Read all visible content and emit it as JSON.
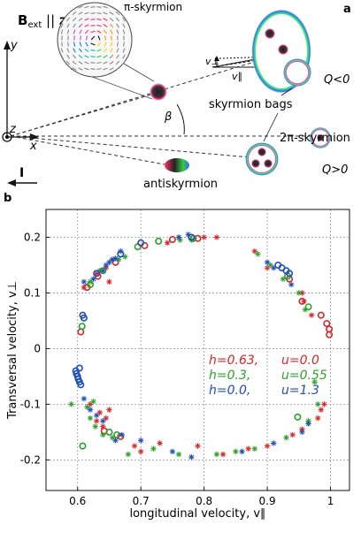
{
  "panel_a": {
    "letter": "a",
    "field": {
      "base": "B",
      "sub": "ext",
      "rest": " || ",
      "dir": "z"
    },
    "axes": {
      "y": "y",
      "x": "x",
      "z": "z"
    },
    "current": "I",
    "labels": {
      "pi_skyrmion": "π-skyrmion",
      "skyrmion_bags": "skyrmion bags",
      "two_pi_skyrmion": "2π-skyrmion",
      "antiskyrmion": "antiskyrmion",
      "q_neg": "Q<0",
      "q_pos": "Q>0",
      "beta": "β",
      "v_perp": "v⊥",
      "v_par": "v∥"
    }
  },
  "panel_b": {
    "letter": "b"
  },
  "chart_data": {
    "type": "scatter",
    "xlabel": "longitudinal velocity, v∥",
    "ylabel": "Transversal velocity, v⊥",
    "xlim": [
      0.55,
      1.03
    ],
    "ylim": [
      -0.255,
      0.25
    ],
    "xticks": [
      0.6,
      0.7,
      0.8,
      0.9,
      1
    ],
    "xtick_labels": [
      "0.6",
      "0.7",
      "0.8",
      "0.9",
      "1"
    ],
    "yticks": [
      -0.2,
      -0.1,
      0,
      0.1,
      0.2
    ],
    "ytick_labels": [
      "-0.2",
      "-0.1",
      "0",
      "0.1",
      "0.2"
    ],
    "grid": true,
    "legend": {
      "placement": "right-center",
      "rows": [
        {
          "h": "h=0.63,",
          "u": "u=0.0",
          "color": "#d62728"
        },
        {
          "h": "h=0.3,",
          "u": "u=0.55",
          "color": "#2ca02c"
        },
        {
          "h": "h=0.0,",
          "u": "u=1.3",
          "color": "#1f4fb4"
        }
      ]
    },
    "series": [
      {
        "color": "#d62728",
        "circles": [
          [
            0.615,
            0.11
          ],
          [
            0.632,
            0.13
          ],
          [
            0.66,
            0.155
          ],
          [
            0.706,
            0.185
          ],
          [
            0.75,
            0.196
          ],
          [
            0.79,
            0.198
          ],
          [
            0.935,
            0.125
          ],
          [
            0.955,
            0.085
          ],
          [
            0.985,
            0.06
          ],
          [
            0.994,
            0.045
          ],
          [
            0.998,
            0.035
          ],
          [
            0.998,
            0.025
          ],
          [
            0.605,
            0.03
          ],
          [
            0.642,
            -0.148
          ],
          [
            0.668,
            -0.158
          ]
        ],
        "stars": [
          [
            0.61,
            0.11
          ],
          [
            0.63,
            0.135
          ],
          [
            0.645,
            0.145
          ],
          [
            0.655,
            0.16
          ],
          [
            0.65,
            0.12
          ],
          [
            0.742,
            0.19
          ],
          [
            0.76,
            0.2
          ],
          [
            0.8,
            0.2
          ],
          [
            0.82,
            0.2
          ],
          [
            0.88,
            0.175
          ],
          [
            0.9,
            0.145
          ],
          [
            0.955,
            0.1
          ],
          [
            0.958,
            0.085
          ],
          [
            0.97,
            0.06
          ],
          [
            0.99,
            -0.1
          ],
          [
            0.985,
            -0.11
          ],
          [
            0.98,
            -0.125
          ],
          [
            0.955,
            -0.145
          ],
          [
            0.94,
            -0.155
          ],
          [
            0.9,
            -0.175
          ],
          [
            0.87,
            -0.18
          ],
          [
            0.83,
            -0.19
          ],
          [
            0.79,
            -0.175
          ],
          [
            0.73,
            -0.17
          ],
          [
            0.7,
            -0.185
          ],
          [
            0.69,
            -0.175
          ],
          [
            0.65,
            -0.11
          ],
          [
            0.645,
            -0.125
          ],
          [
            0.64,
            -0.14
          ],
          [
            0.635,
            -0.115
          ],
          [
            0.63,
            -0.13
          ],
          [
            0.62,
            -0.1
          ]
        ]
      },
      {
        "color": "#2ca02c",
        "circles": [
          [
            0.62,
            0.115
          ],
          [
            0.64,
            0.14
          ],
          [
            0.695,
            0.183
          ],
          [
            0.728,
            0.193
          ],
          [
            0.783,
            0.198
          ],
          [
            0.932,
            0.13
          ],
          [
            0.965,
            0.075
          ],
          [
            0.607,
            0.04
          ],
          [
            0.608,
            -0.175
          ],
          [
            0.65,
            -0.15
          ],
          [
            0.662,
            -0.155
          ],
          [
            0.948,
            -0.123
          ]
        ],
        "stars": [
          [
            0.62,
            0.12
          ],
          [
            0.635,
            0.14
          ],
          [
            0.665,
            0.16
          ],
          [
            0.675,
            0.165
          ],
          [
            0.762,
            0.195
          ],
          [
            0.78,
            0.195
          ],
          [
            0.885,
            0.17
          ],
          [
            0.905,
            0.15
          ],
          [
            0.925,
            0.125
          ],
          [
            0.95,
            0.1
          ],
          [
            0.96,
            0.07
          ],
          [
            0.975,
            -0.06
          ],
          [
            0.98,
            -0.1
          ],
          [
            0.965,
            -0.13
          ],
          [
            0.93,
            -0.16
          ],
          [
            0.88,
            -0.18
          ],
          [
            0.85,
            -0.185
          ],
          [
            0.82,
            -0.19
          ],
          [
            0.76,
            -0.19
          ],
          [
            0.72,
            -0.18
          ],
          [
            0.68,
            -0.19
          ],
          [
            0.655,
            -0.16
          ],
          [
            0.64,
            -0.155
          ],
          [
            0.628,
            -0.14
          ],
          [
            0.62,
            -0.125
          ],
          [
            0.615,
            -0.105
          ],
          [
            0.59,
            -0.1
          ],
          [
            0.625,
            -0.095
          ]
        ]
      },
      {
        "color": "#1f4fb4",
        "circles": [
          [
            0.608,
            0.06
          ],
          [
            0.61,
            0.055
          ],
          [
            0.597,
            -0.04
          ],
          [
            0.598,
            -0.045
          ],
          [
            0.6,
            -0.05
          ],
          [
            0.601,
            -0.055
          ],
          [
            0.603,
            -0.06
          ],
          [
            0.605,
            -0.065
          ],
          [
            0.603,
            -0.035
          ],
          [
            0.917,
            0.15
          ],
          [
            0.923,
            0.145
          ],
          [
            0.93,
            0.14
          ],
          [
            0.935,
            0.135
          ],
          [
            0.78,
            0.2
          ],
          [
            0.7,
            0.19
          ],
          [
            0.668,
            0.17
          ],
          [
            0.63,
            0.135
          ]
        ],
        "stars": [
          [
            0.61,
            0.12
          ],
          [
            0.625,
            0.125
          ],
          [
            0.64,
            0.14
          ],
          [
            0.645,
            0.15
          ],
          [
            0.65,
            0.155
          ],
          [
            0.655,
            0.16
          ],
          [
            0.66,
            0.162
          ],
          [
            0.668,
            0.175
          ],
          [
            0.76,
            0.2
          ],
          [
            0.775,
            0.205
          ],
          [
            0.9,
            0.155
          ],
          [
            0.91,
            0.145
          ],
          [
            0.938,
            0.115
          ],
          [
            0.965,
            -0.135
          ],
          [
            0.955,
            -0.15
          ],
          [
            0.91,
            -0.17
          ],
          [
            0.86,
            -0.185
          ],
          [
            0.78,
            -0.195
          ],
          [
            0.75,
            -0.185
          ],
          [
            0.7,
            -0.165
          ],
          [
            0.67,
            -0.155
          ],
          [
            0.66,
            -0.165
          ],
          [
            0.64,
            -0.13
          ],
          [
            0.63,
            -0.12
          ],
          [
            0.62,
            -0.11
          ],
          [
            0.61,
            -0.09
          ]
        ]
      }
    ]
  }
}
